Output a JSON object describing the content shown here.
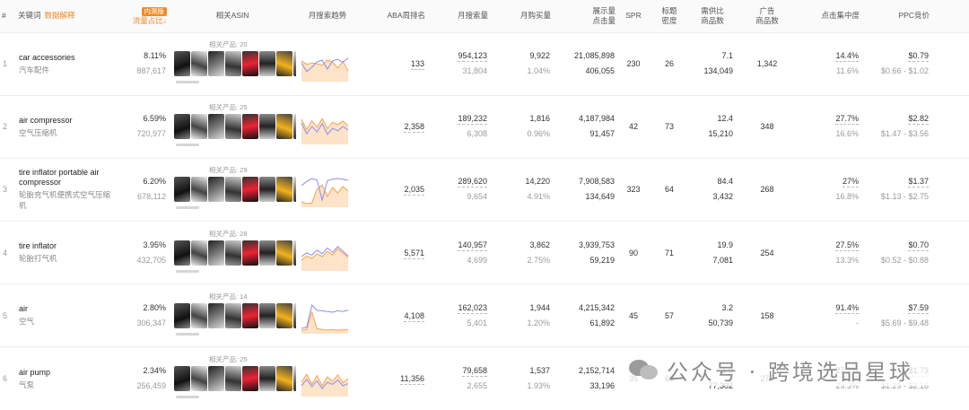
{
  "headers": {
    "index": "#",
    "keyword": "关键词",
    "keyword_link": "数据解释",
    "badge": "内测版",
    "traffic_share": "流量占比",
    "sort_icon": "arrow-down",
    "related_asin": "相关ASIN",
    "monthly_trend": "月搜索趋势",
    "aba_rank": "ABA周排名",
    "monthly_search": "月搜索量",
    "monthly_purchase": "月购买量",
    "impressions_clicks_1": "展示量",
    "impressions_clicks_2": "点击量",
    "spr": "SPR",
    "title_density_1": "标题",
    "title_density_2": "密度",
    "supply_demand_1": "需供比",
    "supply_demand_2": "商品数",
    "ad_products_1": "广告",
    "ad_products_2": "商品数",
    "click_concentration": "点击集中度",
    "ppc_bid": "PPC竞价"
  },
  "rows": [
    {
      "index": "1",
      "keyword_en": "car accessories",
      "keyword_cn": "汽车配件",
      "share_pct": "8.11%",
      "share_count": "887,617",
      "asin_label": "相关产品: 20",
      "aba_rank": "133",
      "search_volume": "954,123",
      "search_sub": "31,804",
      "purchases": "9,922",
      "purchase_rate": "1.04%",
      "impressions": "21,085,898",
      "clicks": "406,055",
      "spr": "230",
      "title_density": "26",
      "demand_ratio": "7.1",
      "product_count": "134,049",
      "ad_products": "1,342",
      "click_conc": "14.4%",
      "click_conc_sub": "11.6%",
      "ppc": "$0.79",
      "ppc_range": "$0.66 - $1.02",
      "trend": {
        "orange": [
          58,
          48,
          52,
          50,
          46,
          60,
          55,
          38,
          56,
          30
        ],
        "blue": [
          52,
          28,
          40,
          55,
          60,
          35,
          58,
          62,
          54,
          66
        ]
      }
    },
    {
      "index": "2",
      "keyword_en": "air compressor",
      "keyword_cn": "空气压缩机",
      "share_pct": "6.59%",
      "share_count": "720,977",
      "asin_label": "相关产品: 25",
      "aba_rank": "2,358",
      "search_volume": "189,232",
      "search_sub": "6,308",
      "purchases": "1,816",
      "purchase_rate": "0.96%",
      "impressions": "4,187,984",
      "clicks": "91,457",
      "spr": "42",
      "title_density": "73",
      "demand_ratio": "12.4",
      "product_count": "15,210",
      "ad_products": "348",
      "click_conc": "27.7%",
      "click_conc_sub": "16.6%",
      "ppc": "$2.82",
      "ppc_range": "$1.47 - $3.56",
      "trend": {
        "orange": [
          70,
          42,
          66,
          48,
          72,
          44,
          62,
          55,
          65,
          52
        ],
        "blue": [
          60,
          30,
          50,
          35,
          58,
          28,
          45,
          38,
          50,
          40
        ]
      }
    },
    {
      "index": "3",
      "keyword_en": "tire inflator portable air compressor",
      "keyword_cn": "轮胎充气机便携式空气压缩机",
      "share_pct": "6.20%",
      "share_count": "678,112",
      "asin_label": "相关产品: 29",
      "aba_rank": "2,035",
      "search_volume": "289,620",
      "search_sub": "9,654",
      "purchases": "14,220",
      "purchase_rate": "4.91%",
      "impressions": "7,908,583",
      "clicks": "134,649",
      "spr": "323",
      "title_density": "64",
      "demand_ratio": "84.4",
      "product_count": "3,432",
      "ad_products": "268",
      "click_conc": "27%",
      "click_conc_sub": "16.8%",
      "ppc": "$1.37",
      "ppc_range": "$1.13 - $2.75",
      "trend": {
        "orange": [
          15,
          10,
          12,
          50,
          62,
          30,
          55,
          40,
          58,
          45
        ],
        "blue": [
          60,
          72,
          80,
          76,
          20,
          74,
          78,
          80,
          78,
          75
        ]
      }
    },
    {
      "index": "4",
      "keyword_en": "tire inflator",
      "keyword_cn": "轮胎打气机",
      "share_pct": "3.95%",
      "share_count": "432,705",
      "asin_label": "相关产品: 28",
      "aba_rank": "5,571",
      "search_volume": "140,957",
      "search_sub": "4,699",
      "purchases": "3,862",
      "purchase_rate": "2.75%",
      "impressions": "3,939,753",
      "clicks": "59,219",
      "spr": "90",
      "title_density": "71",
      "demand_ratio": "19.9",
      "product_count": "7,081",
      "ad_products": "254",
      "click_conc": "27.5%",
      "click_conc_sub": "13.3%",
      "ppc": "$0.70",
      "ppc_range": "$0.52 - $0.88",
      "trend": {
        "orange": [
          30,
          42,
          35,
          48,
          40,
          55,
          45,
          62,
          50,
          38
        ],
        "blue": [
          40,
          50,
          44,
          58,
          48,
          64,
          52,
          68,
          55,
          42
        ]
      }
    },
    {
      "index": "5",
      "keyword_en": "air",
      "keyword_cn": "空气",
      "share_pct": "2.80%",
      "share_count": "306,347",
      "asin_label": "相关产品: 14",
      "aba_rank": "4,108",
      "search_volume": "162,023",
      "search_sub": "5,401",
      "purchases": "1,944",
      "purchase_rate": "1.20%",
      "impressions": "4,215,342",
      "clicks": "61,892",
      "spr": "45",
      "title_density": "57",
      "demand_ratio": "3.2",
      "product_count": "50,739",
      "ad_products": "158",
      "click_conc": "91.4%",
      "click_conc_sub": "-",
      "ppc": "$7.59",
      "ppc_range": "$5.69 - $9.48",
      "trend": {
        "orange": [
          10,
          12,
          60,
          14,
          12,
          10,
          12,
          10,
          11,
          12
        ],
        "blue": [
          15,
          18,
          80,
          65,
          64,
          62,
          60,
          64,
          62,
          66
        ]
      }
    },
    {
      "index": "6",
      "keyword_en": "air pump",
      "keyword_cn": "气泵",
      "share_pct": "2.34%",
      "share_count": "256,459",
      "asin_label": "相关产品: 25",
      "aba_rank": "11,356",
      "search_volume": "79,658",
      "search_sub": "2,655",
      "purchases": "1,537",
      "purchase_rate": "1.93%",
      "impressions": "2,152,714",
      "clicks": "33,196",
      "spr": "35",
      "title_density": "60",
      "demand_ratio": "1.0",
      "product_count": "77,302",
      "ad_products": "272",
      "click_conc": "27.2%",
      "click_conc_sub": "29.3%",
      "ppc": "$1.73",
      "ppc_range": "$1.29 - $2.16",
      "trend": {
        "orange": [
          40,
          62,
          35,
          58,
          30,
          55,
          42,
          60,
          38,
          50
        ],
        "blue": [
          30,
          48,
          28,
          44,
          22,
          40,
          34,
          46,
          30,
          36
        ]
      }
    }
  ],
  "watermark": {
    "text": "公众号 · 跨境选品星球",
    "icon": "wechat-icon"
  },
  "colors": {
    "accent_orange": "#f08a24",
    "trend_orange": "#f5a34a",
    "trend_blue": "#8c8cf0",
    "trend_fill": "#fde3c8"
  }
}
